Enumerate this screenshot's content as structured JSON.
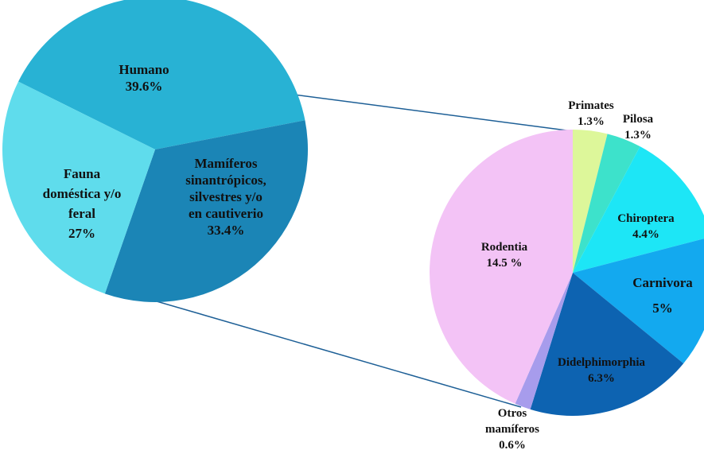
{
  "chart_data": [
    {
      "type": "pie",
      "slices": [
        {
          "label_lines": [
            "Humano",
            "39.6%"
          ],
          "value": 39.6,
          "color": "#28b2d4"
        },
        {
          "label_lines": [
            "Mamíferos",
            "sinantrópicos,",
            "silvestres y/o",
            "en cautiverio",
            "33.4%"
          ],
          "value": 33.4,
          "color": "#1b85b6"
        },
        {
          "label_lines": [
            "Fauna",
            "doméstica y/o",
            "feral",
            "27%"
          ],
          "value": 27,
          "color": "#5fdcec"
        }
      ]
    },
    {
      "type": "pie",
      "slices": [
        {
          "label_lines": [
            "Primates",
            "1.3%"
          ],
          "value": 1.3,
          "color": "#ddf79a"
        },
        {
          "label_lines": [
            "Pilosa",
            "1.3%"
          ],
          "value": 1.3,
          "color": "#3de2cb"
        },
        {
          "label_lines": [
            "Chiroptera",
            "4.4%"
          ],
          "value": 4.4,
          "color": "#1de6f6"
        },
        {
          "label_lines": [
            "Carnivora",
            "5%"
          ],
          "value": 5,
          "color": "#13a9ef"
        },
        {
          "label_lines": [
            "Didelphimorphia",
            "6.3%"
          ],
          "value": 6.3,
          "color": "#0d63b1"
        },
        {
          "label_lines": [
            "Otros",
            "mamíferos",
            "0.6%"
          ],
          "value": 0.6,
          "color": "#a79cec"
        },
        {
          "label_lines": [
            "Rodentia",
            "14.5 %"
          ],
          "value": 14.5,
          "color": "#f3c3f6"
        }
      ]
    }
  ]
}
